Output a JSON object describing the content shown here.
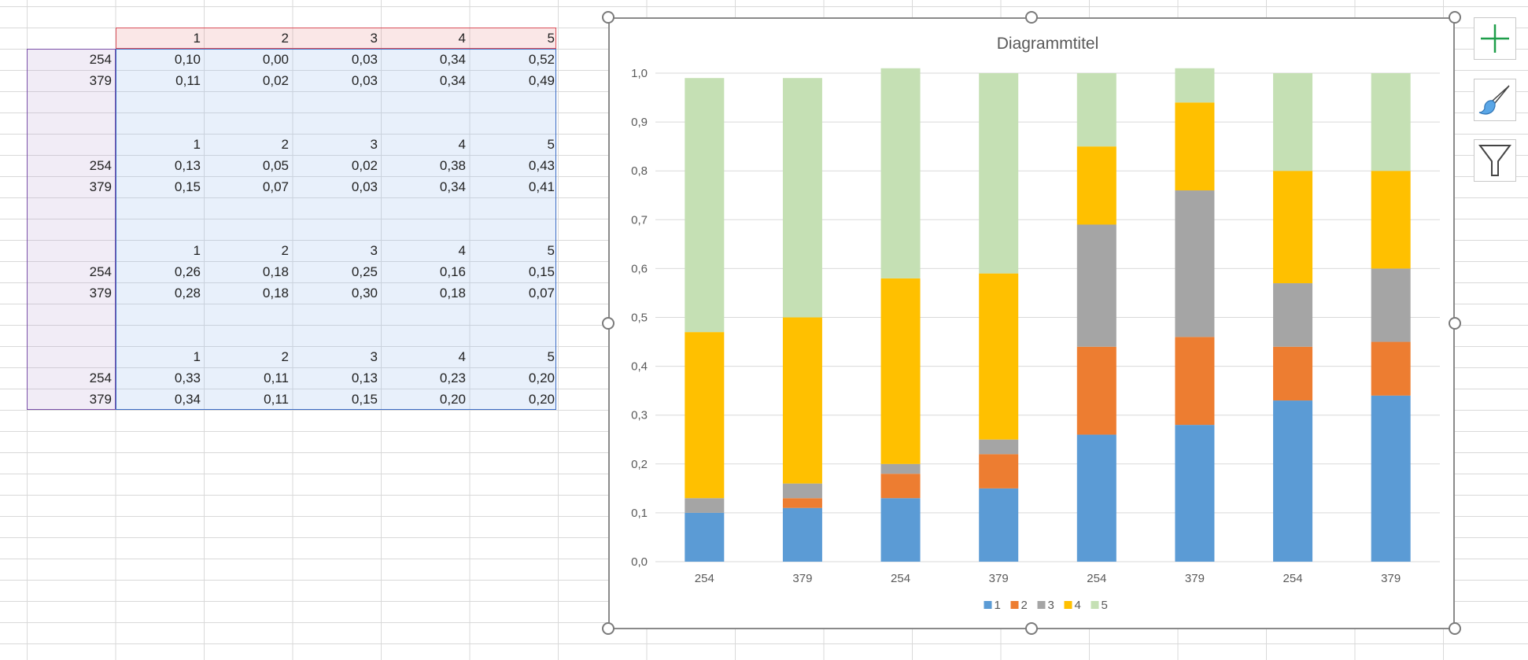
{
  "sheet": {
    "header_numbers": [
      "1",
      "2",
      "3",
      "4",
      "5"
    ],
    "blocks": [
      {
        "header": [
          "1",
          "2",
          "3",
          "4",
          "5"
        ],
        "rows": [
          {
            "label": "254",
            "values": [
              "0,10",
              "0,00",
              "0,03",
              "0,34",
              "0,52"
            ]
          },
          {
            "label": "379",
            "values": [
              "0,11",
              "0,02",
              "0,03",
              "0,34",
              "0,49"
            ]
          }
        ]
      },
      {
        "header": [
          "1",
          "2",
          "3",
          "4",
          "5"
        ],
        "rows": [
          {
            "label": "254",
            "values": [
              "0,13",
              "0,05",
              "0,02",
              "0,38",
              "0,43"
            ]
          },
          {
            "label": "379",
            "values": [
              "0,15",
              "0,07",
              "0,03",
              "0,34",
              "0,41"
            ]
          }
        ]
      },
      {
        "header": [
          "1",
          "2",
          "3",
          "4",
          "5"
        ],
        "rows": [
          {
            "label": "254",
            "values": [
              "0,26",
              "0,18",
              "0,25",
              "0,16",
              "0,15"
            ]
          },
          {
            "label": "379",
            "values": [
              "0,28",
              "0,18",
              "0,30",
              "0,18",
              "0,07"
            ]
          }
        ]
      },
      {
        "header": [
          "1",
          "2",
          "3",
          "4",
          "5"
        ],
        "rows": [
          {
            "label": "254",
            "values": [
              "0,33",
              "0,11",
              "0,13",
              "0,23",
              "0,20"
            ]
          },
          {
            "label": "379",
            "values": [
              "0,34",
              "0,11",
              "0,15",
              "0,20",
              "0,20"
            ]
          }
        ]
      }
    ]
  },
  "chart_data": {
    "type": "bar",
    "stacked": true,
    "title": "Diagrammtitel",
    "categories": [
      "254",
      "379",
      "254",
      "379",
      "254",
      "379",
      "254",
      "379"
    ],
    "ylim": [
      0,
      1
    ],
    "y_ticks": [
      "0,0",
      "0,1",
      "0,2",
      "0,3",
      "0,4",
      "0,5",
      "0,6",
      "0,7",
      "0,8",
      "0,9",
      "1,0"
    ],
    "series": [
      {
        "name": "1",
        "color": "#5b9bd5",
        "values": [
          0.1,
          0.11,
          0.13,
          0.15,
          0.26,
          0.28,
          0.33,
          0.34
        ]
      },
      {
        "name": "2",
        "color": "#ed7d31",
        "values": [
          0.0,
          0.02,
          0.05,
          0.07,
          0.18,
          0.18,
          0.11,
          0.11
        ]
      },
      {
        "name": "3",
        "color": "#a5a5a5",
        "values": [
          0.03,
          0.03,
          0.02,
          0.03,
          0.25,
          0.3,
          0.13,
          0.15
        ]
      },
      {
        "name": "4",
        "color": "#ffc000",
        "values": [
          0.34,
          0.34,
          0.38,
          0.34,
          0.16,
          0.18,
          0.23,
          0.2
        ]
      },
      {
        "name": "5",
        "color": "#c5e0b4",
        "values": [
          0.52,
          0.49,
          0.43,
          0.41,
          0.15,
          0.07,
          0.2,
          0.2
        ]
      }
    ],
    "legend_position": "bottom",
    "gridlines": true
  },
  "side_buttons": {
    "elements": "chart-elements",
    "styles": "chart-styles",
    "filters": "chart-filters"
  }
}
